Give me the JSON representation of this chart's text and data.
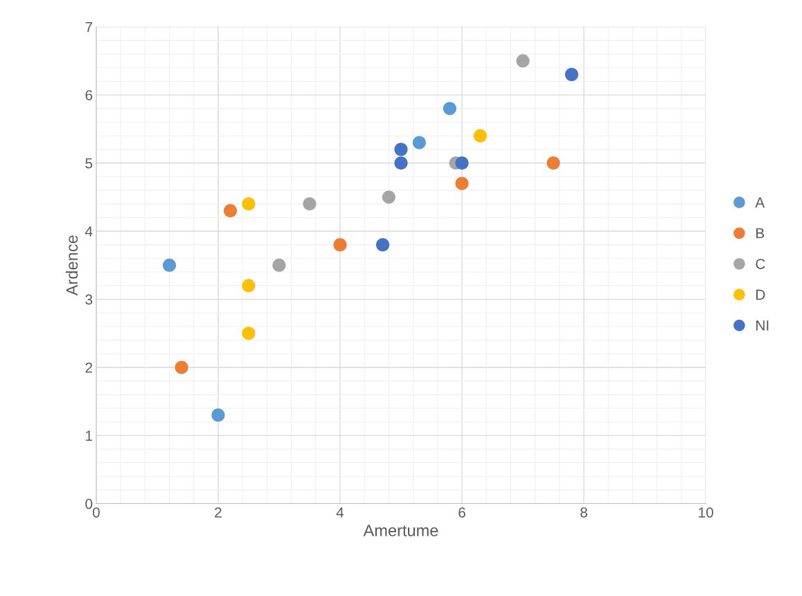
{
  "chart_data": {
    "type": "scatter",
    "xlabel": "Amertume",
    "ylabel": "Ardence",
    "xlim": [
      0,
      10
    ],
    "ylim": [
      0,
      7
    ],
    "xticks": [
      0,
      2,
      4,
      6,
      8,
      10
    ],
    "yticks": [
      0,
      1,
      2,
      3,
      4,
      5,
      6,
      7
    ],
    "grid": true,
    "legend": "right",
    "marker": "circle",
    "series": [
      {
        "name": "A",
        "color": "#5b9bd5",
        "x": [
          1.2,
          2,
          5.3,
          5.8
        ],
        "values": [
          3.5,
          1.3,
          5.3,
          5.8
        ]
      },
      {
        "name": "B",
        "color": "#ed7d31",
        "x": [
          1.4,
          2.2,
          4,
          6,
          7.5
        ],
        "values": [
          2.0,
          4.3,
          3.8,
          4.7,
          5.0
        ]
      },
      {
        "name": "C",
        "color": "#a5a5a5",
        "x": [
          3,
          3.5,
          4.8,
          5.9,
          7
        ],
        "values": [
          3.5,
          4.4,
          4.5,
          5.0,
          6.5
        ]
      },
      {
        "name": "D",
        "color": "#ffc000",
        "x": [
          2.5,
          2.5,
          2.5,
          6.3
        ],
        "values": [
          2.5,
          3.2,
          4.4,
          5.4
        ]
      },
      {
        "name": "NI",
        "color": "#4472c4",
        "x": [
          4.7,
          5,
          5,
          6,
          7.8
        ],
        "values": [
          3.8,
          5.0,
          5.2,
          5.0,
          6.3
        ]
      }
    ]
  }
}
